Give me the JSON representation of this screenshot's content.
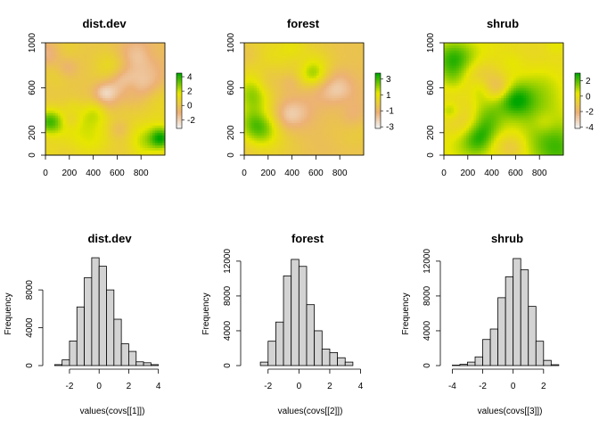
{
  "chart_data": [
    {
      "type": "heatmap",
      "title": "dist.dev",
      "x_ticks": [
        0,
        200,
        400,
        600,
        800
      ],
      "y_ticks": [
        0,
        200,
        600,
        1000
      ],
      "xlim": [
        0,
        1000
      ],
      "ylim": [
        0,
        1000
      ],
      "legend_ticks": [
        4,
        2,
        0,
        -2
      ],
      "legend_range": [
        -3.2,
        4.5
      ],
      "legend_placement": "right",
      "palette": "terrain (green-yellow-tan-white)",
      "colors": [
        "#00A600",
        "#E6E600",
        "#ECB176",
        "#F2F2F2"
      ]
    },
    {
      "type": "heatmap",
      "title": "forest",
      "x_ticks": [
        0,
        200,
        400,
        600,
        800
      ],
      "y_ticks": [
        0,
        200,
        600,
        1000
      ],
      "xlim": [
        0,
        1000
      ],
      "ylim": [
        0,
        1000
      ],
      "legend_ticks": [
        3,
        1,
        -1,
        -3
      ],
      "legend_range": [
        -3.2,
        3.7
      ],
      "legend_placement": "right",
      "palette": "terrain (green-yellow-tan-white)",
      "colors": [
        "#00A600",
        "#E6E600",
        "#ECB176",
        "#F2F2F2"
      ]
    },
    {
      "type": "heatmap",
      "title": "shrub",
      "x_ticks": [
        0,
        200,
        400,
        600,
        800
      ],
      "y_ticks": [
        0,
        200,
        600,
        1000
      ],
      "xlim": [
        0,
        1000
      ],
      "ylim": [
        0,
        1000
      ],
      "legend_ticks": [
        2,
        0,
        -2,
        -4
      ],
      "legend_range": [
        -4.2,
        3.0
      ],
      "legend_placement": "right",
      "palette": "terrain (green-yellow-tan-white)",
      "colors": [
        "#00A600",
        "#E6E600",
        "#ECB176",
        "#F2F2F2"
      ]
    },
    {
      "type": "bar",
      "title": "dist.dev",
      "xlabel": "values(covs[[1]])",
      "ylabel": "Frequency",
      "bin_width": 0.5,
      "bin_start": -3,
      "counts": [
        100,
        600,
        2600,
        6200,
        9300,
        11400,
        10500,
        8000,
        4900,
        2300,
        1500,
        400,
        300,
        100
      ],
      "x_ticks": [
        -2,
        0,
        2,
        4
      ],
      "y_ticks": [
        0,
        4000,
        8000
      ],
      "xlim": [
        -3.2,
        4.5
      ],
      "ylim": [
        0,
        11500
      ],
      "bar_color": "#D3D3D3"
    },
    {
      "type": "bar",
      "title": "forest",
      "xlabel": "values(covs[[2]])",
      "ylabel": "Frequency",
      "bin_width": 0.5,
      "bin_start": -2.5,
      "counts": [
        400,
        2800,
        5000,
        10300,
        12200,
        11400,
        7000,
        4000,
        1900,
        1500,
        900,
        400
      ],
      "x_ticks": [
        -2,
        0,
        2,
        4
      ],
      "y_ticks": [
        0,
        4000,
        8000,
        12000
      ],
      "xlim": [
        -3.2,
        4.2
      ],
      "ylim": [
        0,
        12500
      ],
      "bar_color": "#D3D3D3"
    },
    {
      "type": "bar",
      "title": "shrub",
      "xlabel": "values(covs[[3]])",
      "ylabel": "Frequency",
      "bin_width": 0.5,
      "bin_start": -4,
      "counts": [
        50,
        150,
        400,
        1000,
        3000,
        4200,
        7800,
        10200,
        12300,
        11000,
        6800,
        2800,
        600,
        100
      ],
      "x_ticks": [
        -4,
        -2,
        0,
        2
      ],
      "y_ticks": [
        0,
        4000,
        8000,
        12000
      ],
      "xlim": [
        -4.2,
        3.3
      ],
      "ylim": [
        0,
        12500
      ],
      "bar_color": "#D3D3D3"
    }
  ]
}
